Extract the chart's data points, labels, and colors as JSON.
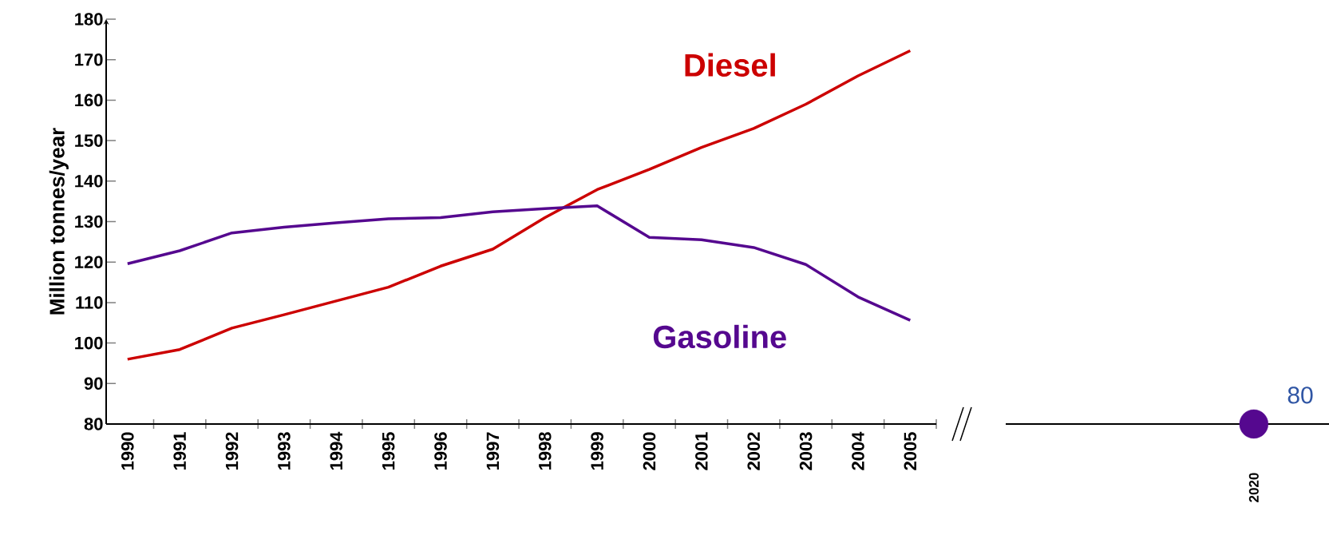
{
  "chart_data": [
    {
      "type": "line",
      "ylabel": "Million tonnes/year",
      "categories": [
        "1990",
        "1991",
        "1992",
        "1993",
        "1994",
        "1995",
        "1996",
        "1997",
        "1998",
        "1999",
        "2000",
        "2001",
        "2002",
        "2003",
        "2004",
        "2005"
      ],
      "ylim": [
        80,
        180
      ],
      "yticks": [
        80,
        90,
        100,
        110,
        120,
        130,
        140,
        150,
        160,
        170,
        180
      ],
      "series": [
        {
          "name": "Diesel",
          "color": "#cc0000",
          "values": [
            96,
            98.4,
            103.7,
            107,
            110.4,
            113.8,
            119,
            123.2,
            131,
            137.9,
            142.9,
            148.3,
            153,
            159,
            166,
            172.2
          ]
        },
        {
          "name": "Gasoline",
          "color": "#55088f",
          "values": [
            119.6,
            122.8,
            127.2,
            128.6,
            129.7,
            130.7,
            131,
            132.4,
            133.2,
            133.9,
            126.1,
            125.5,
            123.6,
            119.4,
            111.4,
            105.6
          ]
        }
      ]
    },
    {
      "type": "scatter",
      "categories": [
        "2020"
      ],
      "ylim": [
        80,
        180
      ],
      "tick_labels": "x",
      "series": [
        {
          "color": "#55088f",
          "values": [
            80
          ],
          "value_labels": [
            "80"
          ]
        }
      ]
    }
  ]
}
